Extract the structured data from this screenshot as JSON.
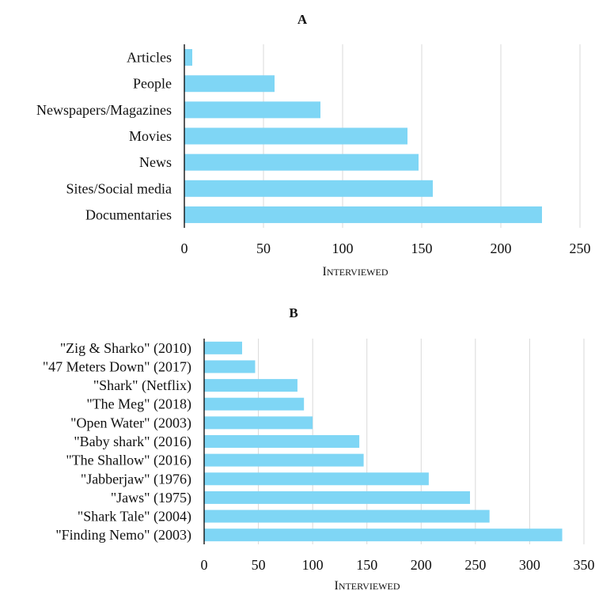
{
  "chart_data": [
    {
      "type": "bar",
      "orientation": "horizontal",
      "title": "A",
      "xlabel": "Interviewed",
      "ylabel": "",
      "xlim": [
        0,
        250
      ],
      "ticks": [
        0,
        50,
        100,
        150,
        200,
        250
      ],
      "grid": true,
      "color": "#7fd6f5",
      "categories": [
        "Articles",
        "People",
        "Newspapers/Magazines",
        "Movies",
        "News",
        "Sites/Social media",
        "Documentaries"
      ],
      "values": [
        5,
        57,
        86,
        141,
        148,
        157,
        226
      ]
    },
    {
      "type": "bar",
      "orientation": "horizontal",
      "title": "B",
      "xlabel": "Interviewed",
      "ylabel": "",
      "xlim": [
        0,
        350
      ],
      "ticks": [
        0,
        50,
        100,
        150,
        200,
        250,
        300,
        350
      ],
      "grid": true,
      "color": "#7fd6f5",
      "categories": [
        "\"Zig & Sharko\" (2010)",
        "\"47 Meters Down\" (2017)",
        "\"Shark\" (Netflix)",
        "\"The Meg\" (2018)",
        "\"Open Water\" (2003)",
        "\"Baby shark\" (2016)",
        "\"The Shallow\" (2016)",
        "\"Jabberjaw\" (1976)",
        "\"Jaws\" (1975)",
        "\"Shark Tale\" (2004)",
        "\"Finding Nemo\" (2003)"
      ],
      "values": [
        35,
        47,
        86,
        92,
        100,
        143,
        147,
        207,
        245,
        263,
        330
      ]
    }
  ]
}
